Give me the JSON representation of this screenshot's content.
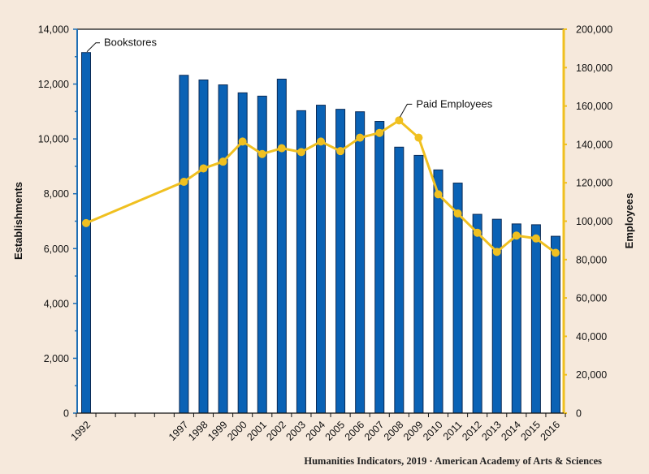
{
  "chart_data": {
    "type": "bar+line",
    "title": "",
    "categories": [
      "1992",
      "1997",
      "1998",
      "1999",
      "2000",
      "2001",
      "2002",
      "2003",
      "2004",
      "2005",
      "2006",
      "2007",
      "2008",
      "2009",
      "2010",
      "2011",
      "2012",
      "2013",
      "2014",
      "2015",
      "2016"
    ],
    "series": [
      {
        "name": "Bookstores",
        "type": "bar",
        "axis": "left",
        "color": "#0a62b5",
        "values": [
          13150,
          12320,
          12150,
          11970,
          11680,
          11560,
          12180,
          11030,
          11230,
          11080,
          10990,
          10640,
          9700,
          9400,
          8870,
          8390,
          7250,
          7070,
          6900,
          6870,
          6450
        ]
      },
      {
        "name": "Paid Employees",
        "type": "line",
        "axis": "right",
        "color": "#f0c020",
        "values": [
          99000,
          120500,
          127500,
          131000,
          141500,
          135000,
          138000,
          136000,
          141500,
          136500,
          143500,
          146000,
          152500,
          143500,
          114000,
          104000,
          94000,
          84000,
          92500,
          91000,
          83500
        ]
      }
    ],
    "x_range": [
      1992,
      2016
    ],
    "ylabel": "Establishments",
    "ylim": [
      0,
      14000
    ],
    "yticks": [
      0,
      2000,
      4000,
      6000,
      8000,
      10000,
      12000,
      14000
    ],
    "ytick_labels": [
      "0",
      "2,000",
      "4,000",
      "6,000",
      "8,000",
      "10,000",
      "12,000",
      "14,000"
    ],
    "y2label": "Employees",
    "y2lim": [
      0,
      200000
    ],
    "y2ticks": [
      0,
      20000,
      40000,
      60000,
      80000,
      100000,
      120000,
      140000,
      160000,
      180000,
      200000
    ],
    "y2tick_labels": [
      "0",
      "20,000",
      "40,000",
      "60,000",
      "80,000",
      "100,000",
      "120,000",
      "140,000",
      "160,000",
      "180,000",
      "200,000"
    ],
    "annotations": [
      {
        "text": "Bookstores",
        "target_series": "Bookstores",
        "target_category": "1992"
      },
      {
        "text": "Paid Employees",
        "target_series": "Paid Employees",
        "target_category": "2008"
      }
    ],
    "grid": false,
    "legend": "none"
  },
  "footer": "Humanities Indicators, 2019 · American Academy of Arts & Sciences"
}
